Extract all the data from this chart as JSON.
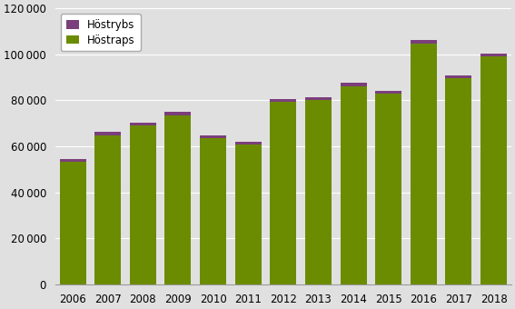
{
  "years": [
    2006,
    2007,
    2008,
    2009,
    2010,
    2011,
    2012,
    2013,
    2014,
    2015,
    2016,
    2017,
    2018
  ],
  "hostraps": [
    53500,
    64800,
    69000,
    73500,
    63500,
    61000,
    79500,
    80000,
    86000,
    83000,
    104500,
    89500,
    99000
  ],
  "hostrybs": [
    1000,
    1500,
    1500,
    1500,
    1200,
    1200,
    1200,
    1200,
    1500,
    1200,
    1800,
    1200,
    1200
  ],
  "hostraps_color": "#6b8c00",
  "hostrybs_color": "#7b3f7b",
  "background_color": "#e0e0e0",
  "ylim": [
    0,
    120000
  ],
  "yticks": [
    0,
    20000,
    40000,
    60000,
    80000,
    100000,
    120000
  ],
  "legend_labels": [
    "Höstrybs",
    "Höstraps"
  ],
  "xlabel": "",
  "ylabel": "",
  "figsize": [
    5.67,
    3.4
  ],
  "dpi": 100
}
